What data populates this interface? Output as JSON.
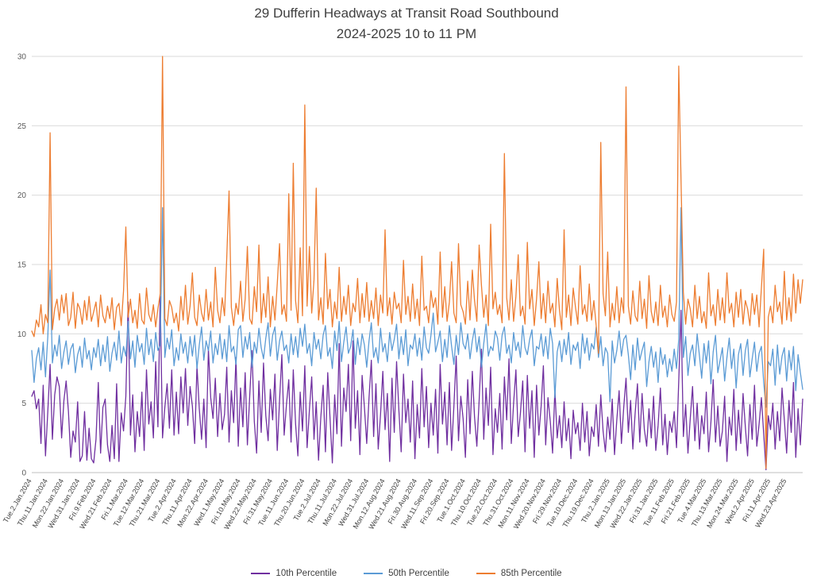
{
  "title": {
    "line1": "29 Dufferin Headways at Transit Road Southbound",
    "line2": "2024-2025 10 to 11 PM"
  },
  "chart_data": {
    "type": "line",
    "title": "29 Dufferin Headways at Transit Road Southbound",
    "subtitle": "2024-2025 10 to 11 PM",
    "xlabel": "",
    "ylabel": "",
    "ylim": [
      0,
      30
    ],
    "ytick_step": 5,
    "grid": "horizontal",
    "legend_position": "bottom",
    "x_label_every": 7,
    "x_labels": [
      "Tue.2.Jan.2024",
      "Thu.11.Jan.2024",
      "Mon.22.Jan.2024",
      "Wed.31.Jan.2024",
      "Fri.9.Feb.2024",
      "Wed.21.Feb.2024",
      "Fri.1.Mar.2024",
      "Tue.12.Mar.2024",
      "Thu.21.Mar.2024",
      "Tue.2.Apr.2024",
      "Thu.11.Apr.2024",
      "Mon.22.Apr.2024",
      "Wed.1.May.2024",
      "Fri.10.May.2024",
      "Wed.22.May.2024",
      "Fri.31.May.2024",
      "Tue.11.Jun.2024",
      "Thu.20.Jun.2024",
      "Tue.2.Jul.2024",
      "Thu.11.Jul.2024",
      "Mon.22.Jul.2024",
      "Wed.31.Jul.2024",
      "Mon.12.Aug.2024",
      "Wed.21.Aug.2024",
      "Fri.30.Aug.2024",
      "Wed.11.Sep.2024",
      "Fri.20.Sep.2024",
      "Tue.1.Oct.2024",
      "Thu.10.Oct.2024",
      "Tue.22.Oct.2024",
      "Thu.31.Oct.2024",
      "Mon.11.Nov.2024",
      "Wed.20.Nov.2024",
      "Fri.29.Nov.2024",
      "Tue.10.Dec.2024",
      "Thu.19.Dec.2024",
      "Thu.2.Jan.2025",
      "Mon.13.Jan.2025",
      "Wed.22.Jan.2025",
      "Fri.31.Jan.2025",
      "Tue.11.Feb.2025",
      "Fri.21.Feb.2025",
      "Tue.4.Mar.2025",
      "Thu.13.Mar.2025",
      "Mon.24.Mar.2025",
      "Wed.2.Apr.2025",
      "Fri.11.Apr.2025",
      "Wed.23.Apr.2025"
    ],
    "series": [
      {
        "name": "10th Percentile",
        "color": "#7030A0",
        "values": [
          5.5,
          5.9,
          4.6,
          5.3,
          2.1,
          6.3,
          1.2,
          4.4,
          7.8,
          2.4,
          5.6,
          6.9,
          6.2,
          2.5,
          5.2,
          6.6,
          4.4,
          1.1,
          3.0,
          2.2,
          5.1,
          0.8,
          1.2,
          4.4,
          0.9,
          3.2,
          1.0,
          0.7,
          2.4,
          6.5,
          1.4,
          4.7,
          5.3,
          2.0,
          0.8,
          3.4,
          1.0,
          6.4,
          0.8,
          4.3,
          3.0,
          5.5,
          12.3,
          2.7,
          5.6,
          1.5,
          4.4,
          2.6,
          5.8,
          1.6,
          7.4,
          3.5,
          5.1,
          2.5,
          8.0,
          3.3,
          12.7,
          2.5,
          4.7,
          6.4,
          3.2,
          7.4,
          2.7,
          5.8,
          2.8,
          6.9,
          4.3,
          7.5,
          3.4,
          6.2,
          4.8,
          2.1,
          7.7,
          4.6,
          2.4,
          5.3,
          1.8,
          8.9,
          5.4,
          3.9,
          6.8,
          2.6,
          5.7,
          3.1,
          4.2,
          7.6,
          2.2,
          5.9,
          3.6,
          8.3,
          1.9,
          6.1,
          3.3,
          7.2,
          2.0,
          5.5,
          8.8,
          3.7,
          1.4,
          6.6,
          2.9,
          7.9,
          4.1,
          2.3,
          6.0,
          3.8,
          7.1,
          1.6,
          5.2,
          8.5,
          2.7,
          4.9,
          6.7,
          2.2,
          7.4,
          3.5,
          1.2,
          5.8,
          3.0,
          7.7,
          1.8,
          4.5,
          6.9,
          2.4,
          5.1,
          0.9,
          4.0,
          6.3,
          1.5,
          7.2,
          3.9,
          0.7,
          5.6,
          2.8,
          9.3,
          1.9,
          6.1,
          4.4,
          7.8,
          2.3,
          9.5,
          3.2,
          5.9,
          1.3,
          7.0,
          4.7,
          2.1,
          5.4,
          8.1,
          2.6,
          6.4,
          1.7,
          4.2,
          7.3,
          3.1,
          5.7,
          0.8,
          6.8,
          2.9,
          8.0,
          4.5,
          1.5,
          7.1,
          3.6,
          5.3,
          2.2,
          6.6,
          1.0,
          4.9,
          2.5,
          7.5,
          3.3,
          6.2,
          1.8,
          5.0,
          2.7,
          6.0,
          1.4,
          7.8,
          3.5,
          5.8,
          2.0,
          6.5,
          1.6,
          4.8,
          8.4,
          2.3,
          5.5,
          3.9,
          1.1,
          6.7,
          2.8,
          7.3,
          4.0,
          1.9,
          5.2,
          8.9,
          2.4,
          6.1,
          3.4,
          7.6,
          1.3,
          4.6,
          2.9,
          5.7,
          1.7,
          6.9,
          3.8,
          8.2,
          2.1,
          5.0,
          7.4,
          2.6,
          4.3,
          6.6,
          1.5,
          7.0,
          3.2,
          5.9,
          1.1,
          6.3,
          2.7,
          4.8,
          7.7,
          2.0,
          5.4,
          3.7,
          1.4,
          6.0,
          2.5,
          4.1,
          1.8,
          5.1,
          2.3,
          3.9,
          1.0,
          4.5,
          2.8,
          3.6,
          1.6,
          5.0,
          2.2,
          4.4,
          1.2,
          3.3,
          2.6,
          4.9,
          1.9,
          5.6,
          3.0,
          1.5,
          4.0,
          2.4,
          5.3,
          1.3,
          3.8,
          5.9,
          2.1,
          4.7,
          6.8,
          2.9,
          5.2,
          1.7,
          4.3,
          6.4,
          2.2,
          5.7,
          3.1,
          1.9,
          4.6,
          2.5,
          5.5,
          1.6,
          3.4,
          6.1,
          2.0,
          4.2,
          1.3,
          3.7,
          2.9,
          4.4,
          1.8,
          6.6,
          11.7,
          2.6,
          4.9,
          1.4,
          3.9,
          6.2,
          2.3,
          5.0,
          1.7,
          4.1,
          2.8,
          5.8,
          1.5,
          3.6,
          6.7,
          2.2,
          4.8,
          1.9,
          3.0,
          5.5,
          0.8,
          4.0,
          2.7,
          6.0,
          1.6,
          4.5,
          2.1,
          5.7,
          3.3,
          1.2,
          4.9,
          2.4,
          6.3,
          1.9,
          3.5,
          5.4,
          2.8,
          0.2,
          4.1,
          3.1,
          5.0,
          1.7,
          4.4,
          2.3,
          6.1,
          3.8,
          1.4,
          5.2,
          2.9,
          6.5,
          1.1,
          4.6,
          2.0,
          5.3
        ]
      },
      {
        "name": "50th Percentile",
        "color": "#5B9BD5",
        "values": [
          8.8,
          6.5,
          8.2,
          9.0,
          7.4,
          9.4,
          6.9,
          9.8,
          14.6,
          7.9,
          9.2,
          8.4,
          9.9,
          7.5,
          8.7,
          9.5,
          7.8,
          8.9,
          9.3,
          7.2,
          8.5,
          9.1,
          7.6,
          9.7,
          8.2,
          8.8,
          7.4,
          9.0,
          8.3,
          9.6,
          7.7,
          9.2,
          8.0,
          9.8,
          7.3,
          8.6,
          9.4,
          8.1,
          10.2,
          7.9,
          9.1,
          8.4,
          10.9,
          8.2,
          9.5,
          7.6,
          9.9,
          8.7,
          9.3,
          7.8,
          10.4,
          8.5,
          9.6,
          8.0,
          10.1,
          8.8,
          9.2,
          19.1,
          8.3,
          9.7,
          8.9,
          10.3,
          7.7,
          9.0,
          8.1,
          10.0,
          8.6,
          9.4,
          7.9,
          9.8,
          8.4,
          9.9,
          7.5,
          9.2,
          10.5,
          8.1,
          9.5,
          8.8,
          10.2,
          7.9,
          9.3,
          8.5,
          10.0,
          8.2,
          9.6,
          8.0,
          10.6,
          8.7,
          9.1,
          7.8,
          10.3,
          10.6,
          8.3,
          9.8,
          8.9,
          10.1,
          7.6,
          9.4,
          8.6,
          10.4,
          9.0,
          8.2,
          9.7,
          10.8,
          8.4,
          9.9,
          10.5,
          8.1,
          9.5,
          10.2,
          8.8,
          9.2,
          7.9,
          10.0,
          8.5,
          9.8,
          8.3,
          10.4,
          9.1,
          10.7,
          8.6,
          9.3,
          7.7,
          10.1,
          8.9,
          9.6,
          8.2,
          9.9,
          10.6,
          8.4,
          9.0,
          7.5,
          10.2,
          8.8,
          10.9,
          8.0,
          9.4,
          10.5,
          8.6,
          9.1,
          10.3,
          7.8,
          9.7,
          8.5,
          10.0,
          9.2,
          7.6,
          9.5,
          10.8,
          8.3,
          9.0,
          7.9,
          10.4,
          8.7,
          9.3,
          8.0,
          10.1,
          8.8,
          9.6,
          10.7,
          8.2,
          9.8,
          8.5,
          10.3,
          7.7,
          9.2,
          8.9,
          10.0,
          8.4,
          9.7,
          8.1,
          10.5,
          9.0,
          8.6,
          9.9,
          11.5,
          8.7,
          9.4,
          10.2,
          8.0,
          9.6,
          8.3,
          10.6,
          9.1,
          7.8,
          9.9,
          8.5,
          10.8,
          9.3,
          8.9,
          10.0,
          8.2,
          9.5,
          10.4,
          8.7,
          9.8,
          7.6,
          9.3,
          10.7,
          8.4,
          9.1,
          8.8,
          10.2,
          9.7,
          8.1,
          9.9,
          10.5,
          8.6,
          9.2,
          7.9,
          10.1,
          8.8,
          9.4,
          8.3,
          10.6,
          9.0,
          8.5,
          9.6,
          10.3,
          7.7,
          9.1,
          8.9,
          10.0,
          8.4,
          9.8,
          8.2,
          10.4,
          9.3,
          5.4,
          8.7,
          9.5,
          8.0,
          9.6,
          8.5,
          10.1,
          7.8,
          9.2,
          8.8,
          9.4,
          7.5,
          10.0,
          8.6,
          9.7,
          8.1,
          9.3,
          8.9,
          10.5,
          8.3,
          9.8,
          7.7,
          9.0,
          8.6,
          5.1,
          9.5,
          7.9,
          8.8,
          10.2,
          8.4,
          9.6,
          9.9,
          8.5,
          6.7,
          9.2,
          7.4,
          9.7,
          8.1,
          8.8,
          9.4,
          6.2,
          8.0,
          9.1,
          7.6,
          8.7,
          6.5,
          9.0,
          7.8,
          8.5,
          6.9,
          8.2,
          7.3,
          8.9,
          7.5,
          9.6,
          19.1,
          8.3,
          9.8,
          7.0,
          8.6,
          9.2,
          7.7,
          10.0,
          8.4,
          6.8,
          9.3,
          7.9,
          9.5,
          6.4,
          8.7,
          9.9,
          7.2,
          8.1,
          9.0,
          6.6,
          8.3,
          9.7,
          7.5,
          8.9,
          6.1,
          8.5,
          9.3,
          7.0,
          8.8,
          9.6,
          6.9,
          8.2,
          9.4,
          7.3,
          8.6,
          9.1,
          6.5,
          4.7,
          8.0,
          7.7,
          8.9,
          6.3,
          9.2,
          7.1,
          8.4,
          9.0,
          6.6,
          8.8,
          7.4,
          9.1,
          5.9,
          8.5,
          7.2,
          6.0
        ]
      },
      {
        "name": "85th Percentile",
        "color": "#ED7D31",
        "values": [
          10.2,
          9.8,
          11.0,
          10.5,
          12.1,
          10.0,
          11.4,
          10.8,
          24.5,
          10.3,
          11.8,
          12.5,
          11.0,
          12.8,
          11.5,
          12.9,
          10.6,
          11.2,
          13.0,
          10.4,
          12.2,
          11.8,
          10.7,
          12.4,
          11.0,
          12.7,
          10.9,
          11.6,
          12.3,
          10.5,
          12.8,
          11.3,
          10.8,
          12.0,
          11.1,
          12.6,
          10.3,
          11.9,
          12.2,
          10.6,
          13.1,
          17.7,
          11.2,
          12.5,
          10.8,
          11.7,
          10.4,
          12.9,
          11.0,
          10.7,
          13.3,
          11.4,
          10.9,
          12.1,
          10.5,
          11.8,
          12.9,
          30.0,
          11.1,
          10.6,
          12.4,
          11.9,
          10.8,
          11.5,
          10.2,
          12.7,
          11.0,
          13.5,
          10.7,
          12.0,
          14.4,
          11.2,
          10.6,
          12.8,
          11.5,
          10.9,
          13.2,
          11.0,
          12.3,
          10.5,
          14.8,
          11.7,
          10.8,
          12.6,
          11.3,
          15.5,
          20.3,
          11.9,
          10.6,
          12.2,
          11.4,
          13.8,
          10.9,
          12.5,
          16.3,
          11.1,
          10.7,
          13.4,
          11.6,
          16.4,
          10.8,
          12.9,
          11.2,
          14.1,
          10.5,
          12.7,
          11.0,
          13.6,
          16.5,
          11.4,
          12.1,
          10.9,
          20.1,
          11.7,
          22.3,
          12.4,
          10.8,
          16.2,
          11.3,
          26.5,
          12.0,
          16.3,
          11.5,
          13.9,
          20.5,
          11.0,
          12.6,
          10.7,
          15.8,
          11.8,
          13.2,
          10.5,
          12.3,
          11.1,
          14.8,
          10.9,
          12.7,
          11.4,
          13.5,
          10.6,
          12.2,
          11.6,
          14.0,
          10.8,
          12.9,
          11.2,
          13.7,
          10.9,
          12.4,
          11.1,
          13.3,
          10.6,
          12.8,
          11.5,
          17.5,
          11.3,
          12.6,
          10.7,
          13.0,
          11.8,
          12.2,
          10.8,
          15.3,
          11.4,
          12.7,
          10.9,
          13.6,
          11.1,
          12.5,
          10.6,
          15.6,
          11.7,
          12.0,
          10.8,
          13.1,
          11.9,
          12.6,
          10.7,
          15.9,
          11.2,
          13.4,
          10.9,
          12.3,
          15.2,
          11.5,
          10.8,
          16.5,
          12.1,
          11.6,
          10.7,
          13.8,
          11.0,
          14.6,
          12.4,
          10.9,
          16.4,
          13.5,
          11.2,
          12.8,
          10.6,
          17.9,
          11.8,
          13.0,
          11.4,
          12.1,
          10.8,
          23.0,
          12.6,
          11.0,
          13.9,
          10.9,
          12.7,
          15.7,
          11.3,
          12.0,
          10.7,
          16.6,
          11.8,
          13.2,
          10.6,
          12.5,
          15.2,
          11.1,
          12.9,
          10.8,
          13.8,
          11.5,
          12.2,
          10.5,
          14.0,
          11.7,
          10.3,
          17.5,
          11.2,
          12.8,
          10.6,
          13.3,
          11.9,
          10.7,
          14.9,
          11.4,
          12.1,
          10.9,
          13.6,
          11.0,
          12.4,
          10.6,
          8.6,
          23.8,
          12.9,
          11.3,
          15.9,
          10.5,
          12.2,
          11.0,
          13.4,
          10.8,
          12.6,
          11.5,
          27.8,
          12.0,
          10.7,
          13.1,
          11.3,
          10.9,
          13.8,
          11.1,
          12.5,
          10.4,
          14.2,
          11.6,
          10.8,
          12.3,
          10.6,
          13.5,
          11.2,
          12.0,
          10.5,
          12.8,
          11.4,
          10.9,
          12.3,
          29.3,
          21.0,
          13.0,
          10.7,
          12.5,
          11.8,
          10.5,
          13.5,
          11.1,
          12.7,
          10.8,
          11.6,
          10.4,
          14.4,
          11.3,
          12.1,
          10.6,
          13.2,
          11.0,
          12.6,
          10.8,
          14.4,
          11.5,
          12.2,
          10.5,
          13.0,
          11.2,
          13.2,
          10.7,
          12.4,
          11.8,
          10.6,
          12.9,
          11.4,
          12.8,
          10.5,
          13.3,
          16.1,
          0.3,
          11.2,
          12.0,
          10.8,
          13.5,
          11.6,
          12.3,
          10.7,
          14.5,
          11.0,
          12.6,
          10.9,
          14.3,
          11.5,
          13.9,
          12.2,
          13.9
        ]
      }
    ]
  }
}
